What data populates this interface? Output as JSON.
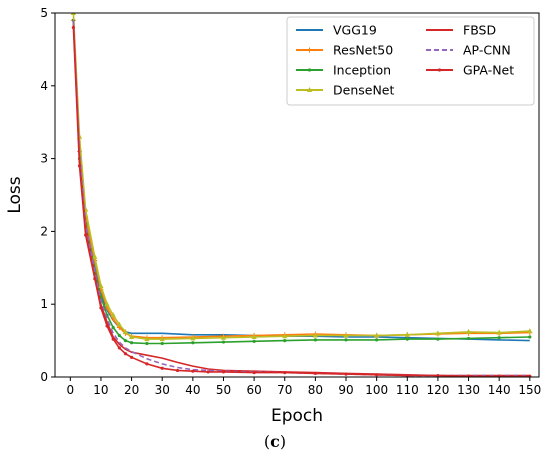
{
  "caption": {
    "open": "(",
    "letter": "c",
    "close": ")"
  },
  "chart_data": {
    "type": "line",
    "xlabel": "Epoch",
    "ylabel": "Loss",
    "xlim": [
      -5,
      153
    ],
    "ylim": [
      0,
      5
    ],
    "xticks": [
      0,
      10,
      20,
      30,
      40,
      50,
      60,
      70,
      80,
      90,
      100,
      110,
      120,
      130,
      140,
      150
    ],
    "yticks": [
      0,
      1,
      2,
      3,
      4,
      5
    ],
    "grid": false,
    "legend_position": "top-right",
    "series": [
      {
        "name": "VGG19",
        "color": "#1f77b4",
        "style": "solid",
        "marker": "none",
        "x": [
          1,
          3,
          5,
          8,
          10,
          12,
          14,
          16,
          18,
          20,
          25,
          30,
          40,
          50,
          60,
          70,
          80,
          90,
          100,
          110,
          120,
          130,
          140,
          150
        ],
        "y": [
          4.9,
          3.0,
          2.1,
          1.5,
          1.15,
          0.92,
          0.78,
          0.68,
          0.62,
          0.6,
          0.6,
          0.6,
          0.58,
          0.58,
          0.57,
          0.56,
          0.56,
          0.55,
          0.55,
          0.54,
          0.53,
          0.52,
          0.51,
          0.5
        ]
      },
      {
        "name": "ResNet50",
        "color": "#ff7f0e",
        "style": "solid",
        "marker": "plus",
        "x": [
          1,
          3,
          5,
          8,
          10,
          12,
          14,
          16,
          18,
          20,
          25,
          30,
          40,
          50,
          60,
          70,
          80,
          90,
          100,
          110,
          120,
          130,
          140,
          150
        ],
        "y": [
          4.9,
          3.1,
          2.2,
          1.6,
          1.2,
          0.95,
          0.8,
          0.68,
          0.6,
          0.56,
          0.54,
          0.54,
          0.55,
          0.56,
          0.57,
          0.58,
          0.59,
          0.58,
          0.57,
          0.58,
          0.59,
          0.6,
          0.6,
          0.61
        ]
      },
      {
        "name": "Inception",
        "color": "#2ca02c",
        "style": "solid",
        "marker": "dot",
        "x": [
          1,
          3,
          5,
          8,
          10,
          12,
          14,
          16,
          18,
          20,
          25,
          30,
          40,
          50,
          60,
          70,
          80,
          90,
          100,
          110,
          120,
          130,
          140,
          150
        ],
        "y": [
          4.9,
          3.0,
          2.1,
          1.45,
          1.1,
          0.85,
          0.68,
          0.57,
          0.5,
          0.47,
          0.46,
          0.46,
          0.47,
          0.48,
          0.49,
          0.5,
          0.51,
          0.51,
          0.51,
          0.52,
          0.52,
          0.53,
          0.54,
          0.55
        ]
      },
      {
        "name": "DenseNet",
        "color": "#bcbd22",
        "style": "solid",
        "marker": "tri",
        "x": [
          1,
          3,
          5,
          8,
          10,
          12,
          14,
          16,
          18,
          20,
          25,
          30,
          40,
          50,
          60,
          70,
          80,
          90,
          100,
          110,
          120,
          130,
          140,
          150
        ],
        "y": [
          5.0,
          3.3,
          2.3,
          1.65,
          1.25,
          1.0,
          0.85,
          0.72,
          0.62,
          0.55,
          0.52,
          0.52,
          0.53,
          0.54,
          0.55,
          0.56,
          0.57,
          0.57,
          0.57,
          0.58,
          0.6,
          0.62,
          0.61,
          0.63
        ]
      },
      {
        "name": "FBSD",
        "color": "#d62728",
        "style": "solid",
        "marker": "none",
        "x": [
          1,
          3,
          5,
          8,
          10,
          12,
          14,
          16,
          18,
          20,
          25,
          30,
          35,
          40,
          45,
          50,
          60,
          70,
          80,
          90,
          100,
          110,
          120,
          130,
          140,
          150
        ],
        "y": [
          4.9,
          3.0,
          2.05,
          1.4,
          1.0,
          0.75,
          0.55,
          0.45,
          0.38,
          0.34,
          0.3,
          0.26,
          0.2,
          0.15,
          0.11,
          0.09,
          0.08,
          0.07,
          0.06,
          0.05,
          0.04,
          0.03,
          0.02,
          0.02,
          0.02,
          0.02
        ]
      },
      {
        "name": "AP-CNN",
        "color": "#9467bd",
        "style": "dashed",
        "marker": "none",
        "x": [
          1,
          3,
          5,
          8,
          10,
          12,
          14,
          16,
          18,
          20,
          25,
          30,
          35,
          40,
          45,
          50,
          60,
          70,
          80,
          90,
          100,
          110,
          120,
          130,
          140,
          150
        ],
        "y": [
          4.9,
          3.1,
          2.1,
          1.45,
          1.05,
          0.8,
          0.6,
          0.48,
          0.4,
          0.35,
          0.25,
          0.18,
          0.13,
          0.1,
          0.09,
          0.08,
          0.07,
          0.06,
          0.05,
          0.04,
          0.03,
          0.02,
          0.02,
          0.02,
          0.02,
          0.02
        ]
      },
      {
        "name": "GPA-Net",
        "color": "#d62728",
        "style": "solid",
        "marker": "dot",
        "x": [
          1,
          3,
          5,
          8,
          10,
          12,
          14,
          16,
          18,
          20,
          25,
          30,
          35,
          40,
          45,
          50,
          60,
          70,
          80,
          90,
          100,
          110,
          120,
          130,
          140,
          150
        ],
        "y": [
          4.8,
          2.9,
          1.95,
          1.35,
          0.95,
          0.7,
          0.52,
          0.4,
          0.32,
          0.27,
          0.18,
          0.12,
          0.09,
          0.08,
          0.07,
          0.07,
          0.06,
          0.06,
          0.05,
          0.04,
          0.03,
          0.02,
          0.02,
          0.01,
          0.01,
          0.01
        ]
      }
    ]
  }
}
